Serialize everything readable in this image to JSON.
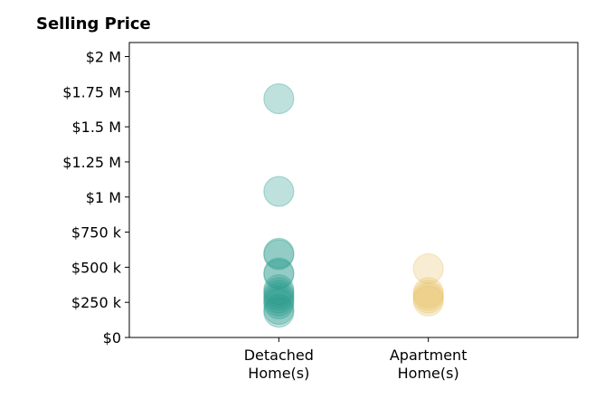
{
  "chart_data": {
    "type": "scatter",
    "title": "Selling Price",
    "xlabel": "",
    "ylabel": "",
    "categories": [
      "Detached\nHome(s)",
      "Apartment\nHome(s)"
    ],
    "ylim": [
      0,
      2100000
    ],
    "yticks": [
      0,
      250000,
      500000,
      750000,
      1000000,
      1250000,
      1500000,
      1750000,
      2000000
    ],
    "ytick_labels": [
      "$0",
      "$250 k",
      "$500 k",
      "$750 k",
      "$1 M",
      "$1.25 M",
      "$1.5 M",
      "$1.75 M",
      "$2 M"
    ],
    "grid": false,
    "legend": "none",
    "series": [
      {
        "category": "Detached\nHome(s)",
        "color": "#2a9d8f",
        "values": [
          1700000,
          1040000,
          600000,
          590000,
          460000,
          450000,
          340000,
          320000,
          300000,
          280000,
          260000,
          240000,
          200000,
          180000
        ]
      },
      {
        "category": "Apartment\nHome(s)",
        "color": "#e9c46a",
        "values": [
          490000,
          320000,
          300000,
          280000,
          260000
        ]
      }
    ]
  }
}
